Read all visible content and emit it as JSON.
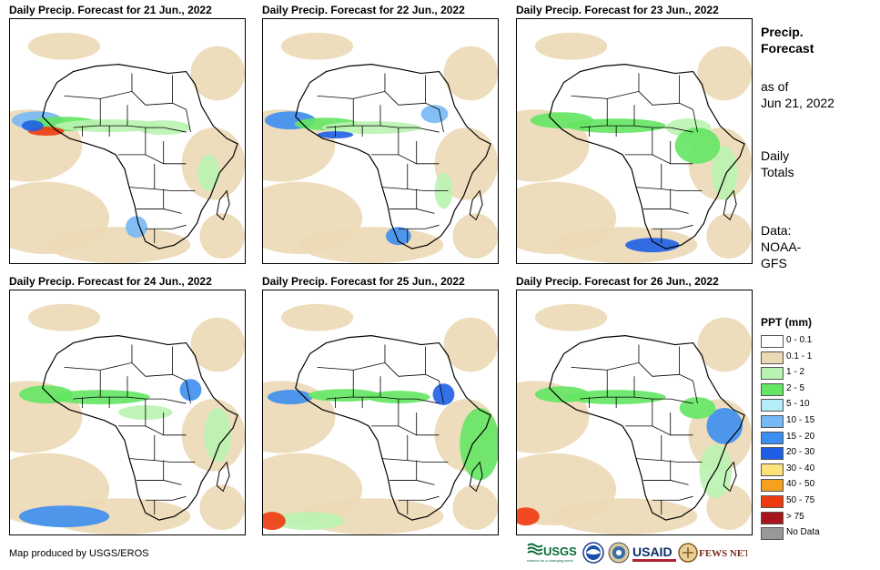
{
  "panels": [
    {
      "title": "Daily Precip. Forecast for 21 Jun., 2022"
    },
    {
      "title": "Daily Precip. Forecast for 22 Jun., 2022"
    },
    {
      "title": "Daily Precip. Forecast for 23 Jun., 2022"
    },
    {
      "title": "Daily Precip. Forecast for 24 Jun., 2022"
    },
    {
      "title": "Daily Precip. Forecast for 25 Jun., 2022"
    },
    {
      "title": "Daily Precip. Forecast for 26 Jun., 2022"
    }
  ],
  "side": {
    "heading_line1": "Precip.",
    "heading_line2": "Forecast",
    "asof_line1": "as of",
    "asof_line2": "Jun 21, 2022",
    "totals_line1": "Daily",
    "totals_line2": "Totals",
    "data_line1": "Data:",
    "data_line2": "NOAA-",
    "data_line3": "GFS"
  },
  "legend": {
    "title": "PPT (mm)",
    "items": [
      {
        "label": "0 - 0.1",
        "color": "#ffffff"
      },
      {
        "label": "0.1 - 1",
        "color": "#ecd9b5"
      },
      {
        "label": "1 - 2",
        "color": "#b9f3b1"
      },
      {
        "label": "2 - 5",
        "color": "#63e663"
      },
      {
        "label": "5 - 10",
        "color": "#b4ecf8"
      },
      {
        "label": "10 - 15",
        "color": "#75b8f5"
      },
      {
        "label": "15 - 20",
        "color": "#3c8ef0"
      },
      {
        "label": "20 - 30",
        "color": "#1e5fe6"
      },
      {
        "label": "30 - 40",
        "color": "#fde27c"
      },
      {
        "label": "40 - 50",
        "color": "#f5a11f"
      },
      {
        "label": "50 - 75",
        "color": "#ee3a0f"
      },
      {
        "label": "> 75",
        "color": "#a8141b"
      },
      {
        "label": "No Data",
        "color": "#999999"
      }
    ]
  },
  "credit": "Map produced by USGS/EROS",
  "logos": {
    "usgs": "USGS",
    "usgs_tagline": "science for a changing world",
    "usaid": "USAID",
    "fewsnet": "FEWS NET"
  }
}
